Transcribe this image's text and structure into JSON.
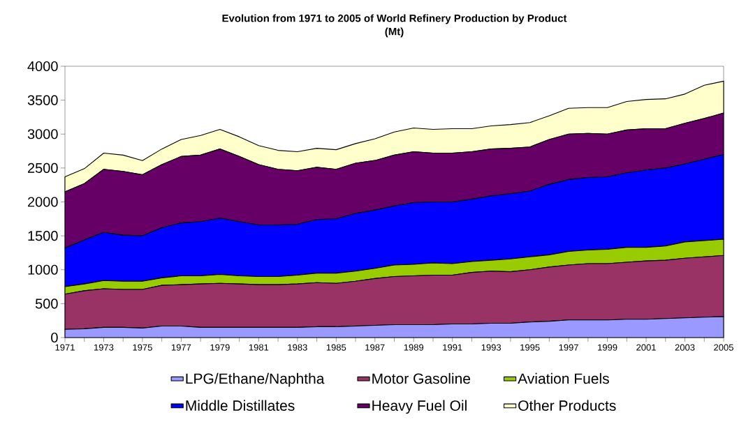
{
  "chart_data": {
    "type": "area",
    "title": "Evolution from 1971 to 2005 of World Refinery Production by Product",
    "subtitle": "(Mt)",
    "stacked": true,
    "legend": "bottom",
    "x": [
      1971,
      1972,
      1973,
      1974,
      1975,
      1976,
      1977,
      1978,
      1979,
      1980,
      1981,
      1982,
      1983,
      1984,
      1985,
      1986,
      1987,
      1988,
      1989,
      1990,
      1991,
      1992,
      1993,
      1994,
      1995,
      1996,
      1997,
      1998,
      1999,
      2000,
      2001,
      2002,
      2003,
      2004,
      2005
    ],
    "xlim": [
      1971,
      2005
    ],
    "xticks": [
      1971,
      {
        "value": 1972,
        "label": null
      },
      1973,
      {
        "value": 1974,
        "label": null
      },
      1975,
      {
        "value": 1976,
        "label": null
      },
      1977,
      {
        "value": 1978,
        "label": null
      },
      1979,
      {
        "value": 1980,
        "label": null
      },
      1981,
      {
        "value": 1982,
        "label": null
      },
      1983,
      {
        "value": 1984,
        "label": null
      },
      1985,
      {
        "value": 1986,
        "label": null
      },
      1987,
      {
        "value": 1988,
        "label": null
      },
      1989,
      {
        "value": 1990,
        "label": null
      },
      1991,
      {
        "value": 1992,
        "label": null
      },
      1993,
      {
        "value": 1994,
        "label": null
      },
      1995,
      {
        "value": 1996,
        "label": null
      },
      1997,
      {
        "value": 1998,
        "label": null
      },
      1999,
      {
        "value": 2000,
        "label": null
      },
      2001,
      {
        "value": 2002,
        "label": null
      },
      2003,
      {
        "value": 2004,
        "label": null
      },
      2005
    ],
    "ylim": [
      0,
      4000
    ],
    "yticks": [
      0,
      500,
      1000,
      1500,
      2000,
      2500,
      3000,
      3500,
      4000
    ],
    "series": [
      {
        "name": "LPG/Ethane/Naphtha",
        "color": "#9999ff",
        "values": [
          120,
          130,
          150,
          150,
          140,
          170,
          170,
          150,
          150,
          150,
          150,
          150,
          150,
          160,
          160,
          170,
          180,
          190,
          190,
          190,
          200,
          200,
          210,
          210,
          230,
          240,
          260,
          260,
          260,
          270,
          270,
          280,
          290,
          300,
          310
        ]
      },
      {
        "name": "Motor Gasoline",
        "color": "#993366",
        "values": [
          520,
          560,
          570,
          560,
          570,
          600,
          610,
          640,
          650,
          640,
          630,
          630,
          640,
          650,
          640,
          660,
          690,
          710,
          720,
          730,
          720,
          760,
          770,
          760,
          770,
          800,
          810,
          830,
          830,
          840,
          860,
          860,
          880,
          890,
          900
        ]
      },
      {
        "name": "Aviation Fuels",
        "color": "#99cc00",
        "values": [
          110,
          100,
          120,
          120,
          120,
          110,
          130,
          120,
          130,
          120,
          120,
          120,
          130,
          140,
          150,
          150,
          150,
          170,
          170,
          180,
          170,
          160,
          160,
          190,
          190,
          180,
          200,
          200,
          210,
          220,
          200,
          210,
          240,
          240,
          240
        ]
      },
      {
        "name": "Middle Distillates",
        "color": "#0000ff",
        "values": [
          570,
          650,
          710,
          680,
          670,
          740,
          780,
          800,
          830,
          800,
          760,
          760,
          750,
          790,
          800,
          850,
          860,
          870,
          910,
          900,
          910,
          920,
          950,
          960,
          970,
          1040,
          1060,
          1070,
          1070,
          1100,
          1140,
          1150,
          1150,
          1200,
          1250
        ]
      },
      {
        "name": "Heavy Fuel Oil",
        "color": "#660066",
        "values": [
          830,
          830,
          930,
          940,
          900,
          930,
          980,
          980,
          1020,
          960,
          890,
          820,
          790,
          770,
          730,
          740,
          730,
          750,
          750,
          720,
          720,
          700,
          690,
          670,
          650,
          660,
          670,
          650,
          630,
          630,
          610,
          580,
          600,
          600,
          610
        ]
      },
      {
        "name": "Other Products",
        "color": "#ffffcc",
        "values": [
          220,
          220,
          240,
          240,
          210,
          230,
          250,
          290,
          290,
          290,
          280,
          280,
          280,
          280,
          290,
          290,
          320,
          340,
          350,
          350,
          360,
          340,
          340,
          350,
          360,
          350,
          380,
          380,
          390,
          420,
          430,
          440,
          430,
          490,
          470
        ]
      }
    ]
  }
}
